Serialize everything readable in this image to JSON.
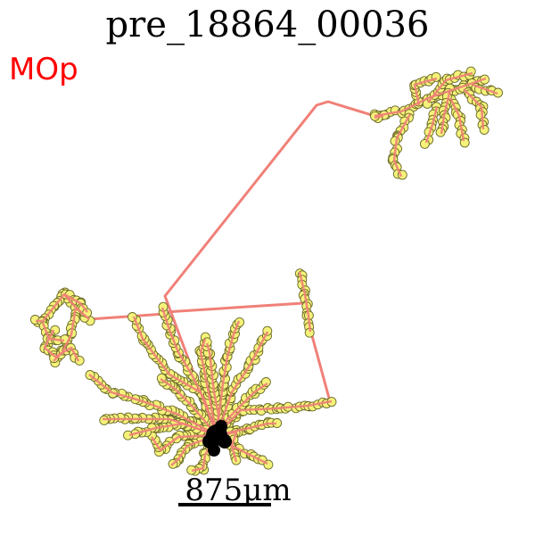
{
  "title": "pre_18864_00036",
  "region": "MOp",
  "scale_bar": {
    "label": "875μm"
  },
  "colors": {
    "title": "#000000",
    "region": "#ff0000",
    "edge": "#f08078",
    "node_fill": "#f5f27a",
    "node_stroke": "#6b6a2a",
    "soma": "#000000"
  }
}
